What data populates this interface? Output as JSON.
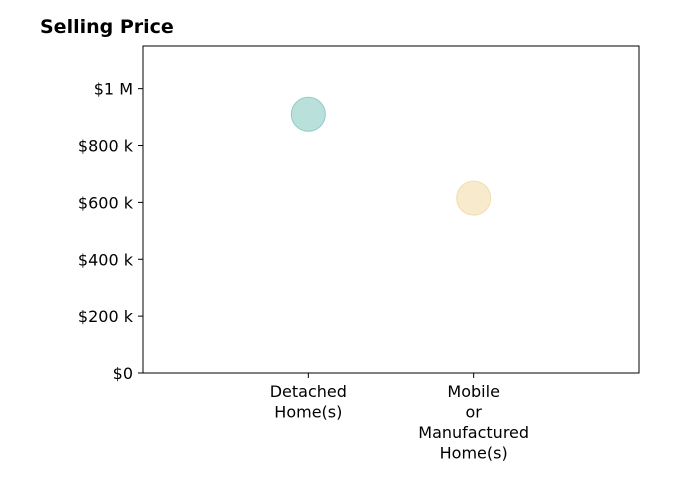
{
  "chart_data": {
    "type": "scatter",
    "title": "Selling Price",
    "xlabel": "",
    "ylabel": "",
    "categories": [
      [
        "Detached",
        "Home(s)"
      ],
      [
        "Mobile",
        "or",
        "Manufactured",
        "Home(s)"
      ]
    ],
    "values": [
      910000,
      615000
    ],
    "colors": [
      "#b3ddd8",
      "#f7e8c6"
    ],
    "edge_colors": [
      "#8fcdc4",
      "#f3dcac"
    ],
    "ylim": [
      0,
      1150000
    ],
    "yticks": [
      0,
      200000,
      400000,
      600000,
      800000,
      1000000
    ],
    "ytick_labels": [
      "$0",
      "$200 k",
      "$400 k",
      "$600 k",
      "$800 k",
      "$1 M"
    ],
    "grid": false,
    "legend": "none"
  }
}
